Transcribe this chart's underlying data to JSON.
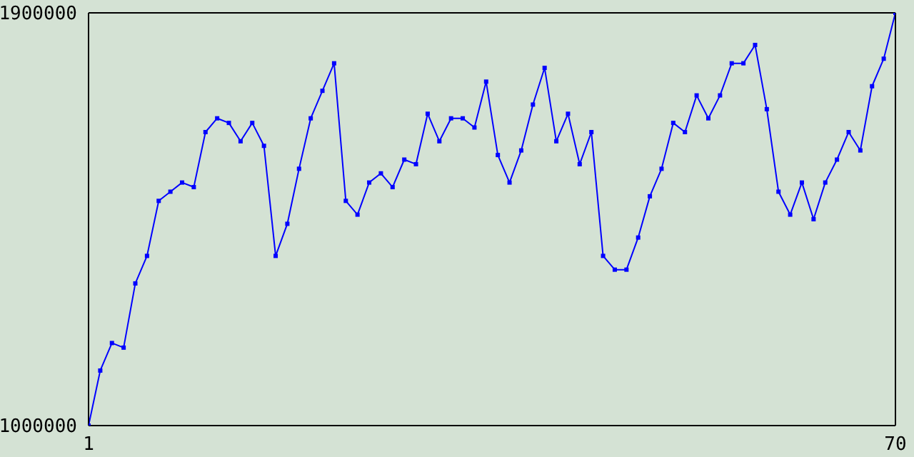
{
  "chart_data": {
    "type": "line",
    "x": [
      1,
      2,
      3,
      4,
      5,
      6,
      7,
      8,
      9,
      10,
      11,
      12,
      13,
      14,
      15,
      16,
      17,
      18,
      19,
      20,
      21,
      22,
      23,
      24,
      25,
      26,
      27,
      28,
      29,
      30,
      31,
      32,
      33,
      34,
      35,
      36,
      37,
      38,
      39,
      40,
      41,
      42,
      43,
      44,
      45,
      46,
      47,
      48,
      49,
      50,
      51,
      52,
      53,
      54,
      55,
      56,
      57,
      58,
      59,
      60,
      61,
      62,
      63,
      64,
      65,
      66,
      67,
      68,
      69,
      70
    ],
    "series": [
      {
        "color": "#0000ff",
        "values": [
          1000000,
          1120000,
          1180000,
          1170000,
          1310000,
          1370000,
          1490000,
          1510000,
          1530000,
          1520000,
          1640000,
          1670000,
          1660000,
          1620000,
          1660000,
          1610000,
          1370000,
          1440000,
          1560000,
          1670000,
          1730000,
          1790000,
          1490000,
          1460000,
          1530000,
          1550000,
          1520000,
          1580000,
          1570000,
          1680000,
          1620000,
          1670000,
          1670000,
          1650000,
          1750000,
          1590000,
          1530000,
          1600000,
          1700000,
          1780000,
          1620000,
          1680000,
          1570000,
          1640000,
          1370000,
          1340000,
          1340000,
          1410000,
          1500000,
          1560000,
          1660000,
          1640000,
          1720000,
          1670000,
          1720000,
          1790000,
          1790000,
          1830000,
          1690000,
          1510000,
          1460000,
          1530000,
          1450000,
          1530000,
          1580000,
          1640000,
          1600000,
          1740000,
          1800000,
          1900000
        ]
      }
    ],
    "xlim": [
      1,
      70
    ],
    "xticks": [
      1,
      70
    ],
    "ylim": [
      1000000,
      1900000
    ],
    "yticks": [
      1000000,
      1900000
    ],
    "marker": "square",
    "line_style": "solid"
  }
}
